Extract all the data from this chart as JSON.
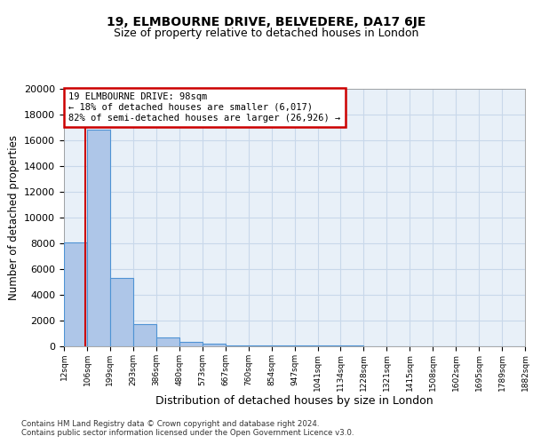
{
  "title1": "19, ELMBOURNE DRIVE, BELVEDERE, DA17 6JE",
  "title2": "Size of property relative to detached houses in London",
  "xlabel": "Distribution of detached houses by size in London",
  "ylabel": "Number of detached properties",
  "footer1": "Contains HM Land Registry data © Crown copyright and database right 2024.",
  "footer2": "Contains public sector information licensed under the Open Government Licence v3.0.",
  "bins": [
    12,
    106,
    199,
    293,
    386,
    480,
    573,
    667,
    760,
    854,
    947,
    1041,
    1134,
    1228,
    1321,
    1415,
    1508,
    1602,
    1695,
    1789,
    1882
  ],
  "bar_heights": [
    8100,
    16800,
    5300,
    1700,
    700,
    350,
    200,
    100,
    55,
    50,
    50,
    40,
    35,
    30,
    25,
    20,
    15,
    10,
    8,
    5
  ],
  "bar_color": "#aec6e8",
  "bar_edge_color": "#4f93d4",
  "property_size": 98,
  "annotation_text_line1": "19 ELMBOURNE DRIVE: 98sqm",
  "annotation_text_line2": "← 18% of detached houses are smaller (6,017)",
  "annotation_text_line3": "82% of semi-detached houses are larger (26,926) →",
  "vline_color": "#cc0000",
  "annotation_box_edge_color": "#cc0000",
  "ylim": [
    0,
    20000
  ],
  "yticks": [
    0,
    2000,
    4000,
    6000,
    8000,
    10000,
    12000,
    14000,
    16000,
    18000,
    20000
  ],
  "grid_color": "#c8d8ea",
  "bg_color": "#e8f0f8"
}
